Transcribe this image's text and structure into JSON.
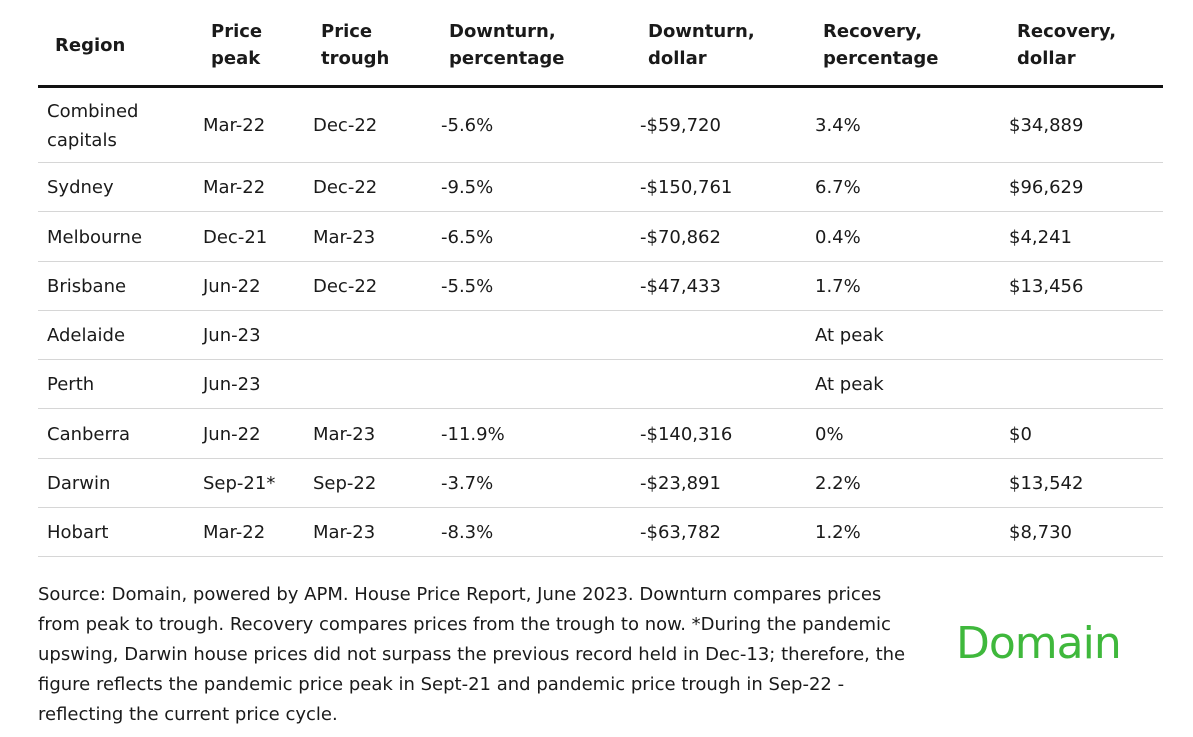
{
  "table": {
    "headers": [
      "Region",
      "Price peak",
      "Price trough",
      "Downturn, percentage",
      "Downturn, dollar",
      "Recovery, percentage",
      "Recovery, dollar"
    ],
    "rows": [
      [
        "Combined capitals",
        "Mar-22",
        "Dec-22",
        "-5.6%",
        "-$59,720",
        "3.4%",
        "$34,889"
      ],
      [
        "Sydney",
        "Mar-22",
        "Dec-22",
        "-9.5%",
        "-$150,761",
        "6.7%",
        "$96,629"
      ],
      [
        "Melbourne",
        "Dec-21",
        "Mar-23",
        "-6.5%",
        "-$70,862",
        "0.4%",
        "$4,241"
      ],
      [
        "Brisbane",
        "Jun-22",
        "Dec-22",
        "-5.5%",
        "-$47,433",
        "1.7%",
        "$13,456"
      ],
      [
        "Adelaide",
        "Jun-23",
        null,
        null,
        null,
        "At peak",
        null
      ],
      [
        "Perth",
        "Jun-23",
        null,
        null,
        null,
        "At peak",
        null
      ],
      [
        "Canberra",
        "Jun-22",
        "Mar-23",
        "-11.9%",
        "-$140,316",
        "0%",
        "$0"
      ],
      [
        "Darwin",
        "Sep-21*",
        "Sep-22",
        "-3.7%",
        "-$23,891",
        "2.2%",
        "$13,542"
      ],
      [
        "Hobart",
        "Mar-22",
        "Mar-23",
        "-8.3%",
        "-$63,782",
        "1.2%",
        "$8,730"
      ]
    ]
  },
  "footer": {
    "source": "Source: Domain, powered by APM. House Price Report, June 2023. Downturn compares prices from peak to trough. Recovery compares prices from the trough to now. *During the pandemic upswing, Darwin house prices did not surpass the previous record held in Dec-13; therefore, the figure reflects the pandemic price peak in Sept-21 and pandemic price trough in Sep-22 - reflecting the current price cycle.",
    "logo": "Domain"
  }
}
